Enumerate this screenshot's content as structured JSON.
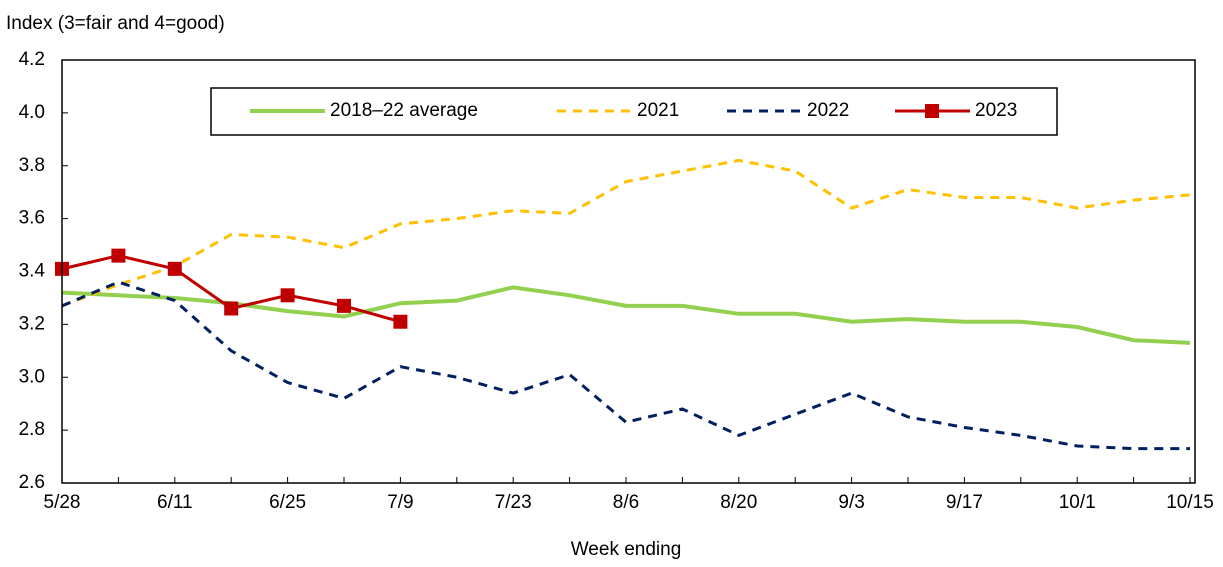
{
  "chart_data": {
    "type": "line",
    "y_label": "Index (3=fair and 4=good)",
    "x_label": "Week ending",
    "categories": [
      "5/28",
      null,
      "6/11",
      null,
      "6/25",
      null,
      "7/9",
      null,
      "7/23",
      null,
      "8/6",
      null,
      "8/20",
      null,
      "9/3",
      null,
      "9/17",
      null,
      "10/1",
      null,
      "10/15"
    ],
    "ylim": [
      2.6,
      4.2
    ],
    "yticks": [
      2.6,
      2.8,
      {
        "value": 3,
        "label": "3.0"
      },
      3.2,
      3.4,
      3.6,
      3.8,
      {
        "value": 4,
        "label": "4.0"
      },
      4.2
    ],
    "legend": "top",
    "series": [
      {
        "name": "2018–22 average",
        "color": "#92d050",
        "dash": "solid",
        "width": 4,
        "values": [
          3.32,
          3.31,
          3.3,
          3.28,
          3.25,
          3.23,
          3.28,
          3.29,
          3.34,
          3.31,
          3.27,
          3.27,
          3.24,
          3.24,
          3.21,
          3.22,
          3.21,
          3.21,
          3.19,
          3.14,
          3.13
        ]
      },
      {
        "name": "2021",
        "color": "#ffc000",
        "dash": "dashed",
        "width": 3,
        "values": [
          3.27,
          3.35,
          3.42,
          3.54,
          3.53,
          3.49,
          3.58,
          3.6,
          3.63,
          3.62,
          3.74,
          3.78,
          3.82,
          3.78,
          3.64,
          3.71,
          3.68,
          3.68,
          3.64,
          3.67,
          3.69
        ]
      },
      {
        "name": "2022",
        "color": "#002060",
        "dash": "dashed",
        "width": 3,
        "values": [
          3.27,
          3.36,
          3.29,
          3.1,
          2.98,
          2.92,
          3.04,
          3.0,
          2.94,
          3.01,
          2.83,
          2.88,
          2.78,
          2.86,
          2.94,
          2.85,
          2.81,
          2.78,
          2.74,
          2.73,
          2.73
        ]
      },
      {
        "name": "2023",
        "color": "#c00000",
        "dash": "solid",
        "width": 3,
        "marker": "square",
        "values": [
          3.41,
          3.46,
          3.41,
          3.26,
          3.31,
          3.27,
          3.21,
          null,
          null,
          null,
          null,
          null,
          null,
          null,
          null,
          null,
          null,
          null,
          null,
          null,
          null
        ]
      }
    ]
  }
}
